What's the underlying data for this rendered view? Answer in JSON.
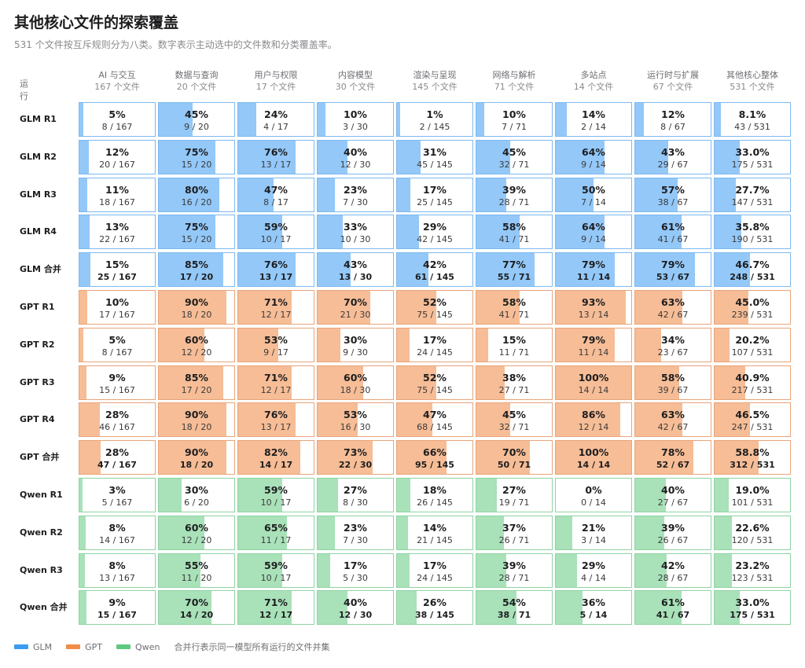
{
  "title": "其他核心文件的探索覆盖",
  "subtitle": "531 个文件按互斥规则分为八类。数字表示主动选中的文件数和分类覆盖率。",
  "run_header": "运行",
  "colors": {
    "GLM": {
      "bar": "#93c8f8",
      "border": "#7db9f0",
      "legend": "#3a9bf0"
    },
    "GPT": {
      "bar": "#f6bd96",
      "border": "#e9a47a",
      "legend": "#f28c48"
    },
    "Qwen": {
      "bar": "#a9e1b9",
      "border": "#8fd3a3",
      "legend": "#5fc97f"
    }
  },
  "legend": {
    "items": [
      {
        "name": "GLM",
        "color": "#3a9bf0"
      },
      {
        "name": "GPT",
        "color": "#f28c48"
      },
      {
        "name": "Qwen",
        "color": "#5fc97f"
      }
    ],
    "note": "合并行表示同一模型所有运行的文件并集"
  },
  "chart_data": {
    "type": "table",
    "columns": [
      {
        "name": "AI 与交互",
        "total": "167 个文件"
      },
      {
        "name": "数据与查询",
        "total": "20 个文件"
      },
      {
        "name": "用户与权限",
        "total": "17 个文件"
      },
      {
        "name": "内容模型",
        "total": "30 个文件"
      },
      {
        "name": "渲染与呈现",
        "total": "145 个文件"
      },
      {
        "name": "网络与解析",
        "total": "71 个文件"
      },
      {
        "name": "多站点",
        "total": "14 个文件"
      },
      {
        "name": "运行时与扩展",
        "total": "67 个文件"
      },
      {
        "name": "其他核心整体",
        "total": "531 个文件"
      }
    ],
    "rows": [
      {
        "label": "GLM R1",
        "model": "GLM",
        "union": false,
        "cells": [
          {
            "pct": "5%",
            "count": "8 / 167",
            "value": 4.8
          },
          {
            "pct": "45%",
            "count": "9 / 20",
            "value": 45
          },
          {
            "pct": "24%",
            "count": "4 / 17",
            "value": 23.5
          },
          {
            "pct": "10%",
            "count": "3 / 30",
            "value": 10
          },
          {
            "pct": "1%",
            "count": "2 / 145",
            "value": 1.4
          },
          {
            "pct": "10%",
            "count": "7 / 71",
            "value": 9.9
          },
          {
            "pct": "14%",
            "count": "2 / 14",
            "value": 14.3
          },
          {
            "pct": "12%",
            "count": "8 / 67",
            "value": 11.9
          },
          {
            "pct": "8.1%",
            "count": "43 / 531",
            "value": 8.1
          }
        ]
      },
      {
        "label": "GLM R2",
        "model": "GLM",
        "union": false,
        "cells": [
          {
            "pct": "12%",
            "count": "20 / 167",
            "value": 12
          },
          {
            "pct": "75%",
            "count": "15 / 20",
            "value": 75
          },
          {
            "pct": "76%",
            "count": "13 / 17",
            "value": 76.5
          },
          {
            "pct": "40%",
            "count": "12 / 30",
            "value": 40
          },
          {
            "pct": "31%",
            "count": "45 / 145",
            "value": 31
          },
          {
            "pct": "45%",
            "count": "32 / 71",
            "value": 45.1
          },
          {
            "pct": "64%",
            "count": "9 / 14",
            "value": 64.3
          },
          {
            "pct": "43%",
            "count": "29 / 67",
            "value": 43.3
          },
          {
            "pct": "33.0%",
            "count": "175 / 531",
            "value": 33
          }
        ]
      },
      {
        "label": "GLM R3",
        "model": "GLM",
        "union": false,
        "cells": [
          {
            "pct": "11%",
            "count": "18 / 167",
            "value": 10.8
          },
          {
            "pct": "80%",
            "count": "16 / 20",
            "value": 80
          },
          {
            "pct": "47%",
            "count": "8 / 17",
            "value": 47.1
          },
          {
            "pct": "23%",
            "count": "7 / 30",
            "value": 23.3
          },
          {
            "pct": "17%",
            "count": "25 / 145",
            "value": 17.2
          },
          {
            "pct": "39%",
            "count": "28 / 71",
            "value": 39.4
          },
          {
            "pct": "50%",
            "count": "7 / 14",
            "value": 50
          },
          {
            "pct": "57%",
            "count": "38 / 67",
            "value": 56.7
          },
          {
            "pct": "27.7%",
            "count": "147 / 531",
            "value": 27.7
          }
        ]
      },
      {
        "label": "GLM R4",
        "model": "GLM",
        "union": false,
        "cells": [
          {
            "pct": "13%",
            "count": "22 / 167",
            "value": 13.2
          },
          {
            "pct": "75%",
            "count": "15 / 20",
            "value": 75
          },
          {
            "pct": "59%",
            "count": "10 / 17",
            "value": 58.8
          },
          {
            "pct": "33%",
            "count": "10 / 30",
            "value": 33.3
          },
          {
            "pct": "29%",
            "count": "42 / 145",
            "value": 29
          },
          {
            "pct": "58%",
            "count": "41 / 71",
            "value": 57.7
          },
          {
            "pct": "64%",
            "count": "9 / 14",
            "value": 64.3
          },
          {
            "pct": "61%",
            "count": "41 / 67",
            "value": 61.2
          },
          {
            "pct": "35.8%",
            "count": "190 / 531",
            "value": 35.8
          }
        ]
      },
      {
        "label": "GLM 合并",
        "model": "GLM",
        "union": true,
        "cells": [
          {
            "pct": "15%",
            "count": "25 / 167",
            "value": 15
          },
          {
            "pct": "85%",
            "count": "17 / 20",
            "value": 85
          },
          {
            "pct": "76%",
            "count": "13 / 17",
            "value": 76.5
          },
          {
            "pct": "43%",
            "count": "13 / 30",
            "value": 43.3
          },
          {
            "pct": "42%",
            "count": "61 / 145",
            "value": 42.1
          },
          {
            "pct": "77%",
            "count": "55 / 71",
            "value": 77.5
          },
          {
            "pct": "79%",
            "count": "11 / 14",
            "value": 78.6
          },
          {
            "pct": "79%",
            "count": "53 / 67",
            "value": 79.1
          },
          {
            "pct": "46.7%",
            "count": "248 / 531",
            "value": 46.7
          }
        ]
      },
      {
        "label": "GPT R1",
        "model": "GPT",
        "union": false,
        "cells": [
          {
            "pct": "10%",
            "count": "17 / 167",
            "value": 10.2
          },
          {
            "pct": "90%",
            "count": "18 / 20",
            "value": 90
          },
          {
            "pct": "71%",
            "count": "12 / 17",
            "value": 70.6
          },
          {
            "pct": "70%",
            "count": "21 / 30",
            "value": 70
          },
          {
            "pct": "52%",
            "count": "75 / 145",
            "value": 51.7
          },
          {
            "pct": "58%",
            "count": "41 / 71",
            "value": 57.7
          },
          {
            "pct": "93%",
            "count": "13 / 14",
            "value": 92.9
          },
          {
            "pct": "63%",
            "count": "42 / 67",
            "value": 62.7
          },
          {
            "pct": "45.0%",
            "count": "239 / 531",
            "value": 45
          }
        ]
      },
      {
        "label": "GPT R2",
        "model": "GPT",
        "union": false,
        "cells": [
          {
            "pct": "5%",
            "count": "8 / 167",
            "value": 4.8
          },
          {
            "pct": "60%",
            "count": "12 / 20",
            "value": 60
          },
          {
            "pct": "53%",
            "count": "9 / 17",
            "value": 52.9
          },
          {
            "pct": "30%",
            "count": "9 / 30",
            "value": 30
          },
          {
            "pct": "17%",
            "count": "24 / 145",
            "value": 16.6
          },
          {
            "pct": "15%",
            "count": "11 / 71",
            "value": 15.5
          },
          {
            "pct": "79%",
            "count": "11 / 14",
            "value": 78.6
          },
          {
            "pct": "34%",
            "count": "23 / 67",
            "value": 34.3
          },
          {
            "pct": "20.2%",
            "count": "107 / 531",
            "value": 20.2
          }
        ]
      },
      {
        "label": "GPT R3",
        "model": "GPT",
        "union": false,
        "cells": [
          {
            "pct": "9%",
            "count": "15 / 167",
            "value": 9
          },
          {
            "pct": "85%",
            "count": "17 / 20",
            "value": 85
          },
          {
            "pct": "71%",
            "count": "12 / 17",
            "value": 70.6
          },
          {
            "pct": "60%",
            "count": "18 / 30",
            "value": 60
          },
          {
            "pct": "52%",
            "count": "75 / 145",
            "value": 51.7
          },
          {
            "pct": "38%",
            "count": "27 / 71",
            "value": 38
          },
          {
            "pct": "100%",
            "count": "14 / 14",
            "value": 100
          },
          {
            "pct": "58%",
            "count": "39 / 67",
            "value": 58.2
          },
          {
            "pct": "40.9%",
            "count": "217 / 531",
            "value": 40.9
          }
        ]
      },
      {
        "label": "GPT R4",
        "model": "GPT",
        "union": false,
        "cells": [
          {
            "pct": "28%",
            "count": "46 / 167",
            "value": 27.5
          },
          {
            "pct": "90%",
            "count": "18 / 20",
            "value": 90
          },
          {
            "pct": "76%",
            "count": "13 / 17",
            "value": 76.5
          },
          {
            "pct": "53%",
            "count": "16 / 30",
            "value": 53.3
          },
          {
            "pct": "47%",
            "count": "68 / 145",
            "value": 46.9
          },
          {
            "pct": "45%",
            "count": "32 / 71",
            "value": 45.1
          },
          {
            "pct": "86%",
            "count": "12 / 14",
            "value": 85.7
          },
          {
            "pct": "63%",
            "count": "42 / 67",
            "value": 62.7
          },
          {
            "pct": "46.5%",
            "count": "247 / 531",
            "value": 46.5
          }
        ]
      },
      {
        "label": "GPT 合并",
        "model": "GPT",
        "union": true,
        "cells": [
          {
            "pct": "28%",
            "count": "47 / 167",
            "value": 28.1
          },
          {
            "pct": "90%",
            "count": "18 / 20",
            "value": 90
          },
          {
            "pct": "82%",
            "count": "14 / 17",
            "value": 82.4
          },
          {
            "pct": "73%",
            "count": "22 / 30",
            "value": 73.3
          },
          {
            "pct": "66%",
            "count": "95 / 145",
            "value": 65.5
          },
          {
            "pct": "70%",
            "count": "50 / 71",
            "value": 70.4
          },
          {
            "pct": "100%",
            "count": "14 / 14",
            "value": 100
          },
          {
            "pct": "78%",
            "count": "52 / 67",
            "value": 77.6
          },
          {
            "pct": "58.8%",
            "count": "312 / 531",
            "value": 58.8
          }
        ]
      },
      {
        "label": "Qwen R1",
        "model": "Qwen",
        "union": false,
        "cells": [
          {
            "pct": "3%",
            "count": "5 / 167",
            "value": 3
          },
          {
            "pct": "30%",
            "count": "6 / 20",
            "value": 30
          },
          {
            "pct": "59%",
            "count": "10 / 17",
            "value": 58.8
          },
          {
            "pct": "27%",
            "count": "8 / 30",
            "value": 26.7
          },
          {
            "pct": "18%",
            "count": "26 / 145",
            "value": 17.9
          },
          {
            "pct": "27%",
            "count": "19 / 71",
            "value": 26.8
          },
          {
            "pct": "0%",
            "count": "0 / 14",
            "value": 0
          },
          {
            "pct": "40%",
            "count": "27 / 67",
            "value": 40.3
          },
          {
            "pct": "19.0%",
            "count": "101 / 531",
            "value": 19
          }
        ]
      },
      {
        "label": "Qwen R2",
        "model": "Qwen",
        "union": false,
        "cells": [
          {
            "pct": "8%",
            "count": "14 / 167",
            "value": 8.4
          },
          {
            "pct": "60%",
            "count": "12 / 20",
            "value": 60
          },
          {
            "pct": "65%",
            "count": "11 / 17",
            "value": 64.7
          },
          {
            "pct": "23%",
            "count": "7 / 30",
            "value": 23.3
          },
          {
            "pct": "14%",
            "count": "21 / 145",
            "value": 14.5
          },
          {
            "pct": "37%",
            "count": "26 / 71",
            "value": 36.6
          },
          {
            "pct": "21%",
            "count": "3 / 14",
            "value": 21.4
          },
          {
            "pct": "39%",
            "count": "26 / 67",
            "value": 38.8
          },
          {
            "pct": "22.6%",
            "count": "120 / 531",
            "value": 22.6
          }
        ]
      },
      {
        "label": "Qwen R3",
        "model": "Qwen",
        "union": false,
        "cells": [
          {
            "pct": "8%",
            "count": "13 / 167",
            "value": 7.8
          },
          {
            "pct": "55%",
            "count": "11 / 20",
            "value": 55
          },
          {
            "pct": "59%",
            "count": "10 / 17",
            "value": 58.8
          },
          {
            "pct": "17%",
            "count": "5 / 30",
            "value": 16.7
          },
          {
            "pct": "17%",
            "count": "24 / 145",
            "value": 16.6
          },
          {
            "pct": "39%",
            "count": "28 / 71",
            "value": 39.4
          },
          {
            "pct": "29%",
            "count": "4 / 14",
            "value": 28.6
          },
          {
            "pct": "42%",
            "count": "28 / 67",
            "value": 41.8
          },
          {
            "pct": "23.2%",
            "count": "123 / 531",
            "value": 23.2
          }
        ]
      },
      {
        "label": "Qwen 合并",
        "model": "Qwen",
        "union": true,
        "cells": [
          {
            "pct": "9%",
            "count": "15 / 167",
            "value": 9
          },
          {
            "pct": "70%",
            "count": "14 / 20",
            "value": 70
          },
          {
            "pct": "71%",
            "count": "12 / 17",
            "value": 70.6
          },
          {
            "pct": "40%",
            "count": "12 / 30",
            "value": 40
          },
          {
            "pct": "26%",
            "count": "38 / 145",
            "value": 26.2
          },
          {
            "pct": "54%",
            "count": "38 / 71",
            "value": 53.5
          },
          {
            "pct": "36%",
            "count": "5 / 14",
            "value": 35.7
          },
          {
            "pct": "61%",
            "count": "41 / 67",
            "value": 61.2
          },
          {
            "pct": "33.0%",
            "count": "175 / 531",
            "value": 33
          }
        ]
      }
    ]
  }
}
